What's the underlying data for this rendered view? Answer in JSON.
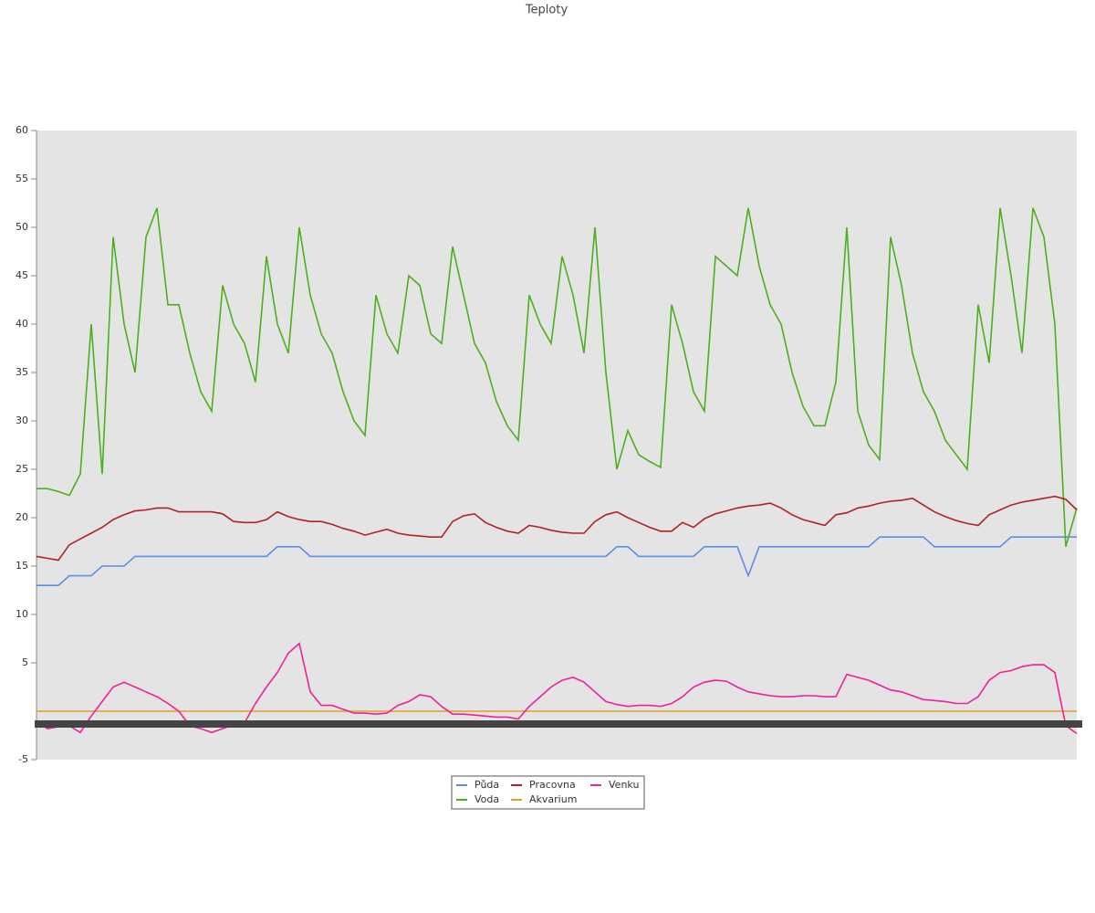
{
  "chart_data": {
    "type": "line",
    "title": "Teploty",
    "categories": [
      null,
      null,
      null,
      null,
      null,
      null,
      null,
      null,
      null,
      null,
      null,
      null,
      null,
      null,
      null,
      null,
      null,
      null,
      null,
      null,
      null,
      null,
      null,
      null,
      null,
      null,
      null,
      null,
      null,
      null,
      null,
      null,
      null,
      null,
      null,
      null,
      null,
      null,
      null,
      null,
      null,
      null,
      null,
      null,
      null,
      null,
      null,
      null,
      null,
      null,
      null,
      null,
      null,
      null,
      null,
      null,
      null,
      null,
      null,
      null,
      null,
      null,
      null,
      null,
      null,
      null,
      null,
      null,
      null,
      null,
      null,
      null,
      null,
      null,
      null,
      null,
      null,
      null,
      null,
      null,
      null,
      null,
      null,
      null,
      null,
      null,
      null,
      null,
      null,
      null,
      null,
      null,
      null,
      null,
      null,
      null
    ],
    "ylim": [
      -5,
      60
    ],
    "yticks": [
      -5,
      5,
      10,
      15,
      20,
      25,
      30,
      35,
      40,
      45,
      50,
      55,
      60
    ],
    "series": [
      {
        "name": "Půda",
        "color": "#5b8ee6",
        "values": [
          13,
          13,
          13,
          14,
          14,
          14,
          15,
          15,
          15,
          16,
          16,
          16,
          16,
          16,
          16,
          16,
          16,
          16,
          16,
          16,
          16,
          16,
          17,
          17,
          17,
          16,
          16,
          16,
          16,
          16,
          16,
          16,
          16,
          16,
          16,
          16,
          16,
          16,
          16,
          16,
          16,
          16,
          16,
          16,
          16,
          16,
          16,
          16,
          16,
          16,
          16,
          16,
          16,
          17,
          17,
          16,
          16,
          16,
          16,
          16,
          16,
          17,
          17,
          17,
          17,
          14,
          17,
          17,
          17,
          17,
          17,
          17,
          17,
          17,
          17,
          17,
          17,
          18,
          18,
          18,
          18,
          18,
          17,
          17,
          17,
          17,
          17,
          17,
          17,
          18,
          18,
          18,
          18,
          18,
          18,
          18
        ]
      },
      {
        "name": "Voda",
        "color": "#4cb01c",
        "values": [
          23,
          23,
          22.7,
          22.3,
          24.5,
          40,
          24.5,
          49,
          40,
          35,
          49,
          52,
          42,
          42,
          37,
          33,
          31,
          44,
          40,
          38,
          34,
          47,
          40,
          37,
          50,
          43,
          39,
          37,
          33,
          30,
          28.5,
          43,
          39,
          37,
          45,
          44,
          39,
          38,
          48,
          43,
          38,
          36,
          32,
          29.5,
          28,
          43,
          40,
          38,
          47,
          43,
          37,
          50,
          35,
          25,
          29,
          26.5,
          25.8,
          25.2,
          42,
          38,
          33,
          31,
          47,
          46,
          45,
          52,
          46,
          42,
          40,
          35,
          31.5,
          29.5,
          29.5,
          34,
          50,
          31,
          27.5,
          26,
          49,
          44,
          37,
          33,
          31,
          28,
          26.5,
          25,
          42,
          36,
          52,
          45,
          37,
          52,
          49,
          40,
          17,
          21
        ]
      },
      {
        "name": "Pracovna",
        "color": "#b22222",
        "values": [
          16,
          15.8,
          15.6,
          17.2,
          17.8,
          18.4,
          19,
          19.8,
          20.3,
          20.7,
          20.8,
          21,
          21,
          20.6,
          20.6,
          20.6,
          20.6,
          20.4,
          19.6,
          19.5,
          19.5,
          19.8,
          20.6,
          20.1,
          19.8,
          19.6,
          19.6,
          19.3,
          18.9,
          18.6,
          18.2,
          18.5,
          18.8,
          18.4,
          18.2,
          18.1,
          18,
          18,
          19.6,
          20.2,
          20.4,
          19.5,
          19,
          18.6,
          18.4,
          19.2,
          19,
          18.7,
          18.5,
          18.4,
          18.4,
          19.6,
          20.3,
          20.6,
          20,
          19.5,
          19,
          18.6,
          18.6,
          19.5,
          19,
          19.9,
          20.4,
          20.7,
          21,
          21.2,
          21.3,
          21.5,
          21,
          20.3,
          19.8,
          19.5,
          19.2,
          20.3,
          20.5,
          21,
          21.2,
          21.5,
          21.7,
          21.8,
          22,
          21.3,
          20.6,
          20.1,
          19.7,
          19.4,
          19.2,
          20.3,
          20.8,
          21.3,
          21.6,
          21.8,
          22,
          22.2,
          21.9,
          20.8
        ]
      },
      {
        "name": "Akvarium",
        "color": "#e0a020",
        "values": [
          0,
          0,
          0,
          0,
          0,
          0,
          0,
          0,
          0,
          0,
          0,
          0,
          0,
          0,
          0,
          0,
          0,
          0,
          0,
          0,
          0,
          0,
          0,
          0,
          0,
          0,
          0,
          0,
          0,
          0,
          0,
          0,
          0,
          0,
          0,
          0,
          0,
          0,
          0,
          0,
          0,
          0,
          0,
          0,
          0,
          0,
          0,
          0,
          0,
          0,
          0,
          0,
          0,
          0,
          0,
          0,
          0,
          0,
          0,
          0,
          0,
          0,
          0,
          0,
          0,
          0,
          0,
          0,
          0,
          0,
          0,
          0,
          0,
          0,
          0,
          0,
          0,
          0,
          0,
          0,
          0,
          0,
          0,
          0,
          0,
          0,
          0,
          0,
          0,
          0,
          0,
          0,
          0,
          0,
          0,
          0
        ]
      },
      {
        "name": "Venku",
        "color": "#f0209a",
        "values": [
          -1,
          -1.8,
          -1.6,
          -1.5,
          -2.2,
          -0.5,
          1,
          2.5,
          3,
          2.5,
          2,
          1.5,
          0.8,
          0,
          -1.5,
          -1.8,
          -2.2,
          -1.8,
          -1.4,
          -1.2,
          0.8,
          2.5,
          4,
          6,
          7,
          2,
          0.6,
          0.6,
          0.2,
          -0.2,
          -0.2,
          -0.3,
          -0.2,
          0.6,
          1,
          1.7,
          1.5,
          0.5,
          -0.3,
          -0.3,
          -0.4,
          -0.5,
          -0.6,
          -0.6,
          -0.8,
          0.5,
          1.5,
          2.5,
          3.2,
          3.5,
          3,
          2,
          1,
          0.7,
          0.5,
          0.6,
          0.6,
          0.5,
          0.8,
          1.5,
          2.5,
          3,
          3.2,
          3.1,
          2.5,
          2,
          1.8,
          1.6,
          1.5,
          1.5,
          1.6,
          1.6,
          1.5,
          1.5,
          3.8,
          3.5,
          3.2,
          2.7,
          2.2,
          2,
          1.6,
          1.2,
          1.1,
          1,
          0.8,
          0.8,
          1.5,
          3.2,
          4,
          4.2,
          4.6,
          4.8,
          4.8,
          4,
          -1.5,
          -2.3
        ]
      }
    ]
  }
}
